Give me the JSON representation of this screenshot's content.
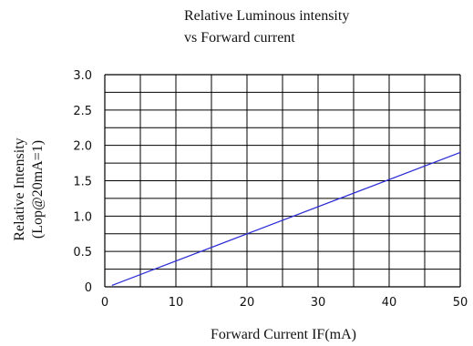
{
  "chart_data": {
    "type": "line",
    "title": [
      "Relative Luminous intensity",
      "vs Forward current"
    ],
    "xlabel": "Forward Current IF(mA)",
    "ylabel": [
      "Relative Intensity",
      "(Lop@20mA=1)"
    ],
    "xlim": [
      0,
      50
    ],
    "ylim": [
      0,
      3.0
    ],
    "xticks": [
      "0",
      "10",
      "20",
      "30",
      "40",
      "50"
    ],
    "yticks": [
      "0",
      "0.5",
      "1.0",
      "1.5",
      "2.0",
      "2.5",
      "3.0"
    ],
    "grid": true,
    "series": [
      {
        "x": [
          1,
          50
        ],
        "y": [
          0.02,
          1.9
        ]
      }
    ],
    "colors": {
      "line": "#2a2ad6",
      "grid": "#000000"
    }
  }
}
